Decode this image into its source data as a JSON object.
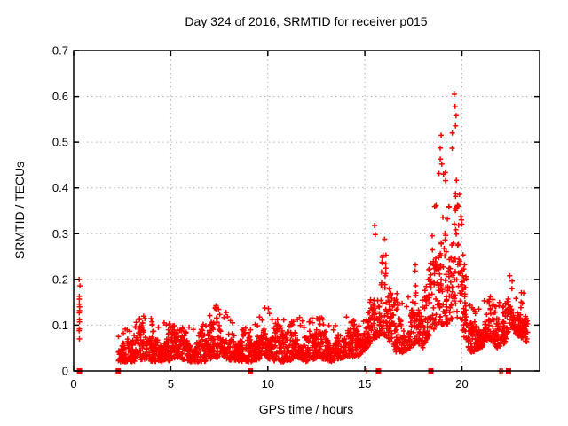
{
  "window": {
    "background": "#ffffff"
  },
  "chart_data": {
    "type": "scatter",
    "title": "Day 324 of 2016, SRMTID for receiver p015",
    "xlabel": "GPS time / hours",
    "ylabel": "SRMTID / TECUs",
    "xlim": [
      0,
      24
    ],
    "ylim": [
      0,
      0.7
    ],
    "xticks": [
      0,
      5,
      10,
      15,
      20
    ],
    "yticks": [
      0,
      0.1,
      0.2,
      0.3,
      0.4,
      0.5,
      0.6,
      0.7
    ],
    "grid": true,
    "legend_position": "none",
    "marker": {
      "shape": "plus",
      "color": "#ff0000",
      "size": 7
    },
    "zero_marker": {
      "shape": "filled-square",
      "color": "#ff0000",
      "size": 6
    },
    "grid_color": "#b4b4b4",
    "border_color": "#000000",
    "startup_cluster": {
      "t": 0.32,
      "x_jitter": 0.08,
      "values": [
        0.07,
        0.088,
        0.092,
        0.107,
        0.112,
        0.127,
        0.132,
        0.14,
        0.146,
        0.157,
        0.163,
        0.186,
        0.2
      ]
    },
    "envelope": [
      [
        2.3,
        0.02,
        0.085
      ],
      [
        3.0,
        0.02,
        0.11
      ],
      [
        3.6,
        0.025,
        0.12
      ],
      [
        4.2,
        0.02,
        0.125
      ],
      [
        4.8,
        0.02,
        0.1
      ],
      [
        5.3,
        0.03,
        0.13
      ],
      [
        6.0,
        0.02,
        0.1
      ],
      [
        6.7,
        0.02,
        0.11
      ],
      [
        7.3,
        0.03,
        0.15
      ],
      [
        7.9,
        0.025,
        0.13
      ],
      [
        8.6,
        0.02,
        0.1
      ],
      [
        9.2,
        0.02,
        0.095
      ],
      [
        9.9,
        0.03,
        0.15
      ],
      [
        10.4,
        0.02,
        0.12
      ],
      [
        11.0,
        0.02,
        0.115
      ],
      [
        11.5,
        0.03,
        0.13
      ],
      [
        12.0,
        0.02,
        0.105
      ],
      [
        12.6,
        0.03,
        0.13
      ],
      [
        13.2,
        0.02,
        0.1
      ],
      [
        14.0,
        0.03,
        0.13
      ],
      [
        14.6,
        0.03,
        0.105
      ],
      [
        15.1,
        0.05,
        0.13
      ],
      [
        15.45,
        0.07,
        0.3
      ],
      [
        15.9,
        0.08,
        0.29
      ],
      [
        16.2,
        0.07,
        0.26
      ],
      [
        16.6,
        0.04,
        0.18
      ],
      [
        17.1,
        0.04,
        0.14
      ],
      [
        17.6,
        0.06,
        0.23
      ],
      [
        18.0,
        0.05,
        0.16
      ],
      [
        18.35,
        0.08,
        0.25
      ],
      [
        18.7,
        0.1,
        0.44
      ],
      [
        19.0,
        0.1,
        0.5
      ],
      [
        19.3,
        0.1,
        0.38
      ],
      [
        19.6,
        0.12,
        0.58
      ],
      [
        19.9,
        0.1,
        0.4
      ],
      [
        20.15,
        0.06,
        0.25
      ],
      [
        20.5,
        0.04,
        0.14
      ],
      [
        21.0,
        0.05,
        0.15
      ],
      [
        21.4,
        0.07,
        0.2
      ],
      [
        21.8,
        0.05,
        0.15
      ],
      [
        22.2,
        0.06,
        0.16
      ],
      [
        22.5,
        0.1,
        0.21
      ],
      [
        22.8,
        0.08,
        0.17
      ],
      [
        23.1,
        0.07,
        0.19
      ],
      [
        23.4,
        0.06,
        0.14
      ]
    ],
    "peak_points": [
      [
        19.6,
        0.605
      ],
      [
        19.65,
        0.578
      ],
      [
        19.7,
        0.558
      ],
      [
        19.5,
        0.52
      ],
      [
        18.93,
        0.515
      ],
      [
        18.88,
        0.487
      ],
      [
        18.96,
        0.452
      ],
      [
        19.05,
        0.43
      ],
      [
        15.5,
        0.318
      ],
      [
        15.54,
        0.298
      ],
      [
        16.02,
        0.288
      ],
      [
        17.6,
        0.232
      ],
      [
        22.46,
        0.208
      ]
    ],
    "zero_squares_t": [
      0.3,
      2.3,
      9.1,
      15.7,
      18.4,
      22.4
    ],
    "zero_plus_t": [
      15.1,
      21.95,
      22.08
    ],
    "density_per_hour": 115,
    "skew": 1.35,
    "seed": 324
  }
}
